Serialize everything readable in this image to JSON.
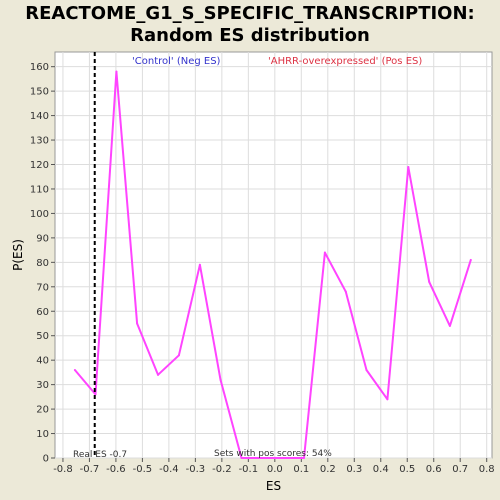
{
  "chart_data": {
    "type": "line",
    "title_lines": [
      "REACTOME_G1_S_SPECIFIC_TRANSCRIPTION:",
      "Random ES distribution"
    ],
    "xlabel": "ES",
    "ylabel": "P(ES)",
    "xlim": [
      -0.83,
      0.82
    ],
    "ylim": [
      0,
      166
    ],
    "x_ticks": [
      -0.8,
      -0.7,
      -0.6,
      -0.5,
      -0.4,
      -0.3,
      -0.2,
      -0.1,
      0.0,
      0.1,
      0.2,
      0.3,
      0.4,
      0.5,
      0.6,
      0.7,
      0.8
    ],
    "x_tick_labels": [
      "-0.8",
      "-0.7",
      "-0.6",
      "-0.5",
      "-0.4",
      "-0.3",
      "-0.2",
      "-0.1",
      "0.0",
      "0.1",
      "0.2",
      "0.3",
      "0.4",
      "0.5",
      "0.6",
      "0.7",
      "0.8"
    ],
    "y_ticks": [
      0,
      10,
      20,
      30,
      40,
      50,
      60,
      70,
      80,
      90,
      100,
      110,
      120,
      130,
      140,
      150,
      160
    ],
    "grid": true,
    "series": [
      {
        "color": "#ff44ff",
        "x": [
          -0.755,
          -0.677,
          -0.598,
          -0.52,
          -0.441,
          -0.362,
          -0.283,
          -0.205,
          -0.126,
          -0.047,
          0.032,
          0.11,
          0.189,
          0.268,
          0.346,
          0.425,
          0.504,
          0.583,
          0.661,
          0.74
        ],
        "y": [
          36,
          26,
          158,
          55,
          34,
          42,
          79,
          32,
          0,
          0,
          0,
          0,
          84,
          68,
          36,
          24,
          119,
          72,
          54,
          81
        ]
      }
    ],
    "real_es": {
      "value": -0.68,
      "label": "Real ES -0.7",
      "color": "#000000"
    },
    "legend": [
      {
        "label": "'Control' (Neg ES)",
        "color": "#3333cc",
        "placement": "top-left"
      },
      {
        "label": "'AHRR-overexpressed' (Pos ES)",
        "color": "#dd3344",
        "placement": "top-right"
      }
    ],
    "annotation": "Sets with pos scores: 54%"
  }
}
